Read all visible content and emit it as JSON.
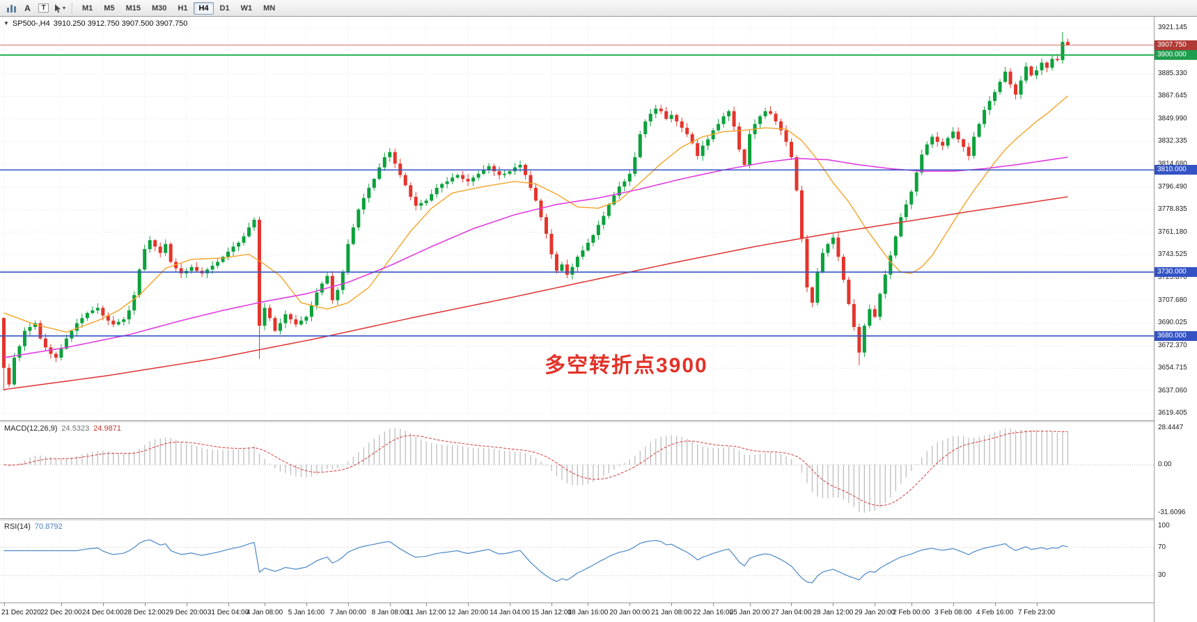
{
  "toolbar": {
    "tools": [
      {
        "name": "chart-bars",
        "type": "bars"
      },
      {
        "name": "annotate-a",
        "type": "text",
        "glyph": "A"
      },
      {
        "name": "annotate-t",
        "type": "text",
        "glyph": "T",
        "boxed": true
      },
      {
        "name": "cursor-tool",
        "type": "cursor"
      }
    ],
    "timeframes": [
      "M1",
      "M5",
      "M15",
      "M30",
      "H1",
      "H4",
      "D1",
      "W1",
      "MN"
    ],
    "active_timeframe": "H4"
  },
  "main": {
    "menu_icon_glyph": "▼",
    "symbol_label": "SP500-,H4",
    "ohlc": "3910.250 3912.750 3907.500 3907.750",
    "annotation": "多空转折点3900",
    "annotation_color": "#e23228"
  },
  "macd": {
    "label": "MACD(12,26,9)",
    "value_main": "24.5323",
    "value_signal": "24.9871",
    "axis_labels": [
      "28.4447",
      "0.00",
      "-31.6096"
    ]
  },
  "rsi": {
    "label": "RSI(14)",
    "value": "70.8792",
    "axis_labels": [
      "100",
      "70",
      "30"
    ],
    "levels": [
      70,
      30
    ]
  },
  "chart_data": {
    "type": "candlestick",
    "symbol": "SP500-",
    "timeframe": "H4",
    "title": "SP500-,H4",
    "ylim": [
      3614,
      3930
    ],
    "current_price": 3907.75,
    "current_bar_ohlc": [
      3910.25,
      3912.75,
      3907.5,
      3907.75
    ],
    "price_axis_labels": [
      "3921.145",
      "3885.330",
      "3867.645",
      "3849.990",
      "3832.335",
      "3814.680",
      "3796.490",
      "3778.835",
      "3761.180",
      "3743.525",
      "3725.870",
      "3707.680",
      "3690.025",
      "3672.370",
      "3654.715",
      "3637.060",
      "3619.405"
    ],
    "price_badges": [
      {
        "text": "3907.750",
        "price": 3907.75,
        "color": "#b03a34"
      },
      {
        "text": "3900.000",
        "price": 3900.0,
        "color": "#1e9e4e"
      },
      {
        "text": "3810.000",
        "price": 3810.0,
        "color": "#3353c4"
      },
      {
        "text": "3730.000",
        "price": 3730.0,
        "color": "#3353c4"
      },
      {
        "text": "3680.000",
        "price": 3680.0,
        "color": "#3353c4"
      }
    ],
    "hlines": [
      {
        "price": 3900.0,
        "color": "#1fb14c",
        "width": 2
      },
      {
        "price": 3810.0,
        "color": "#3353c4",
        "width": 1.6
      },
      {
        "price": 3730.0,
        "color": "#3353c4",
        "width": 1.6
      },
      {
        "price": 3680.0,
        "color": "#3353c4",
        "width": 1.6
      }
    ],
    "open_first": 3694,
    "closes": [
      3655,
      3642,
      3663,
      3672,
      3684,
      3687,
      3690,
      3678,
      3671,
      3666,
      3663,
      3670,
      3678,
      3684,
      3690,
      3694,
      3698,
      3700,
      3702,
      3696,
      3692,
      3689,
      3691,
      3693,
      3700,
      3712,
      3732,
      3748,
      3755,
      3750,
      3745,
      3752,
      3738,
      3733,
      3729,
      3731,
      3734,
      3731,
      3729,
      3732,
      3735,
      3738,
      3742,
      3746,
      3750,
      3753,
      3758,
      3765,
      3771,
      3688,
      3702,
      3694,
      3684,
      3690,
      3697,
      3693,
      3689,
      3692,
      3695,
      3704,
      3714,
      3721,
      3727,
      3708,
      3716,
      3730,
      3752,
      3765,
      3779,
      3788,
      3796,
      3803,
      3812,
      3820,
      3824,
      3815,
      3806,
      3798,
      3789,
      3782,
      3784,
      3786,
      3791,
      3796,
      3799,
      3801,
      3804,
      3806,
      3803,
      3801,
      3804,
      3807,
      3810,
      3813,
      3809,
      3806,
      3807,
      3809,
      3812,
      3814,
      3806,
      3796,
      3786,
      3773,
      3760,
      3744,
      3731,
      3736,
      3728,
      3734,
      3742,
      3747,
      3753,
      3759,
      3767,
      3774,
      3783,
      3790,
      3797,
      3801,
      3807,
      3820,
      3838,
      3848,
      3854,
      3858,
      3856,
      3850,
      3853,
      3848,
      3843,
      3838,
      3831,
      3821,
      3829,
      3834,
      3841,
      3846,
      3852,
      3856,
      3844,
      3826,
      3814,
      3838,
      3846,
      3852,
      3856,
      3854,
      3848,
      3841,
      3832,
      3820,
      3794,
      3756,
      3718,
      3706,
      3730,
      3745,
      3752,
      3757,
      3742,
      3724,
      3705,
      3687,
      3667,
      3688,
      3701,
      3695,
      3713,
      3728,
      3743,
      3758,
      3773,
      3783,
      3793,
      3808,
      3822,
      3830,
      3836,
      3832,
      3829,
      3835,
      3840,
      3834,
      3828,
      3821,
      3836,
      3846,
      3857,
      3864,
      3871,
      3879,
      3887,
      3877,
      3869,
      3880,
      3891,
      3884,
      3888,
      3894,
      3890,
      3897,
      3896,
      3910.25,
      3907.75
    ],
    "wick_overrides": {
      "0": {
        "low": 3637
      },
      "49": {
        "low": 3662
      },
      "74": {
        "high": 3827
      },
      "126": {
        "high": 3861
      },
      "164": {
        "low": 3657
      },
      "203": {
        "high": 3918
      },
      "204": {
        "high": 3912.75,
        "low": 3907.5
      }
    },
    "ma_lines": [
      {
        "name": "ma-fast-orange",
        "color": "#f5a227",
        "width": 1.4,
        "waypoints": [
          [
            0,
            3698
          ],
          [
            6,
            3689
          ],
          [
            12,
            3683
          ],
          [
            18,
            3692
          ],
          [
            22,
            3700
          ],
          [
            26,
            3712
          ],
          [
            31,
            3733
          ],
          [
            36,
            3740
          ],
          [
            42,
            3741
          ],
          [
            47,
            3744
          ],
          [
            50,
            3736
          ],
          [
            53,
            3727
          ],
          [
            57,
            3706
          ],
          [
            62,
            3701
          ],
          [
            66,
            3706
          ],
          [
            70,
            3718
          ],
          [
            74,
            3740
          ],
          [
            78,
            3762
          ],
          [
            82,
            3780
          ],
          [
            86,
            3792
          ],
          [
            92,
            3797
          ],
          [
            98,
            3801
          ],
          [
            102,
            3799
          ],
          [
            106,
            3791
          ],
          [
            110,
            3781
          ],
          [
            114,
            3780
          ],
          [
            118,
            3786
          ],
          [
            122,
            3800
          ],
          [
            126,
            3815
          ],
          [
            130,
            3828
          ],
          [
            134,
            3836
          ],
          [
            138,
            3840
          ],
          [
            142,
            3841
          ],
          [
            146,
            3843
          ],
          [
            150,
            3842
          ],
          [
            153,
            3833
          ],
          [
            156,
            3818
          ],
          [
            159,
            3800
          ],
          [
            162,
            3785
          ],
          [
            165,
            3766
          ],
          [
            168,
            3749
          ],
          [
            170,
            3738
          ],
          [
            172,
            3730
          ],
          [
            174,
            3729
          ],
          [
            176,
            3734
          ],
          [
            178,
            3743
          ],
          [
            180,
            3756
          ],
          [
            182,
            3769
          ],
          [
            184,
            3782
          ],
          [
            186,
            3794
          ],
          [
            188,
            3805
          ],
          [
            190,
            3816
          ],
          [
            192,
            3826
          ],
          [
            194,
            3834
          ],
          [
            196,
            3841
          ],
          [
            198,
            3848
          ],
          [
            200,
            3854
          ],
          [
            202,
            3861
          ],
          [
            204,
            3868
          ]
        ]
      },
      {
        "name": "ma-medium-magenta",
        "color": "#e03ce0",
        "width": 1.6,
        "waypoints": [
          [
            0,
            3663
          ],
          [
            12,
            3671
          ],
          [
            24,
            3681
          ],
          [
            34,
            3692
          ],
          [
            42,
            3700
          ],
          [
            50,
            3707
          ],
          [
            58,
            3713
          ],
          [
            66,
            3722
          ],
          [
            74,
            3735
          ],
          [
            82,
            3750
          ],
          [
            90,
            3764
          ],
          [
            98,
            3775
          ],
          [
            106,
            3783
          ],
          [
            114,
            3788
          ],
          [
            122,
            3795
          ],
          [
            130,
            3803
          ],
          [
            138,
            3810
          ],
          [
            146,
            3816
          ],
          [
            152,
            3819
          ],
          [
            158,
            3818
          ],
          [
            164,
            3814
          ],
          [
            170,
            3811
          ],
          [
            176,
            3809
          ],
          [
            182,
            3809
          ],
          [
            188,
            3811
          ],
          [
            194,
            3814
          ],
          [
            199,
            3817
          ],
          [
            204,
            3820
          ]
        ]
      },
      {
        "name": "ma-slow-red",
        "color": "#df3030",
        "width": 1.5,
        "waypoints": [
          [
            0,
            3638
          ],
          [
            20,
            3649
          ],
          [
            40,
            3662
          ],
          [
            60,
            3678
          ],
          [
            78,
            3694
          ],
          [
            96,
            3709
          ],
          [
            112,
            3723
          ],
          [
            128,
            3737
          ],
          [
            144,
            3750
          ],
          [
            158,
            3760
          ],
          [
            172,
            3769
          ],
          [
            186,
            3778
          ],
          [
            196,
            3784
          ],
          [
            204,
            3789
          ]
        ]
      }
    ],
    "time_labels": [
      [
        "21 Dec 2020",
        0
      ],
      [
        "22 Dec 20:00",
        11
      ],
      [
        "24 Dec 04:00",
        19
      ],
      [
        "28 Dec 12:00",
        27
      ],
      [
        "29 Dec 20:00",
        35
      ],
      [
        "31 Dec 04:00",
        43
      ],
      [
        "4 Jan 08:00",
        50
      ],
      [
        "5 Jan 16:00",
        58
      ],
      [
        "7 Jan 00:00",
        66
      ],
      [
        "8 Jan 08:00",
        74
      ],
      [
        "11 Jan 12:00",
        81
      ],
      [
        "12 Jan 20:00",
        89
      ],
      [
        "14 Jan 04:00",
        97
      ],
      [
        "15 Jan 12:00",
        105
      ],
      [
        "18 Jan 16:00",
        112
      ],
      [
        "20 Jan 00:00",
        120
      ],
      [
        "21 Jan 08:00",
        128
      ],
      [
        "22 Jan 16:00",
        136
      ],
      [
        "25 Jan 20:00",
        143
      ],
      [
        "27 Jan 04:00",
        151
      ],
      [
        "28 Jan 12:00",
        159
      ],
      [
        "29 Jan 20:00",
        167
      ],
      [
        "2 Feb 00:00",
        174
      ],
      [
        "3 Feb 08:00",
        182
      ],
      [
        "4 Feb 16:00",
        190
      ],
      [
        "7 Feb 23:00",
        198
      ]
    ],
    "colors": {
      "bull": "#0ca13c",
      "bear": "#e3352c",
      "grid": "#e6e6e6",
      "axis_text": "#1c1c1c",
      "macd_hist": "#bdbdbd",
      "macd_signal": "#d43b3b",
      "rsi_line": "#4a86c8",
      "bid_line": "#d0685c"
    }
  }
}
